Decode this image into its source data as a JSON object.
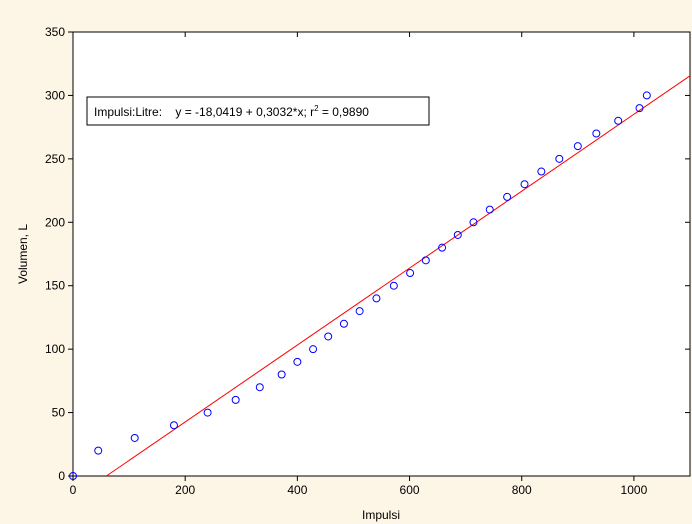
{
  "chart_data": {
    "type": "scatter",
    "title": "",
    "xlabel": "Impulsi",
    "ylabel": "Volumen, L",
    "xlim": [
      0,
      1100
    ],
    "ylim": [
      0,
      350
    ],
    "x_ticks": [
      0,
      200,
      400,
      600,
      800,
      1000
    ],
    "y_ticks": [
      0,
      50,
      100,
      150,
      200,
      250,
      300,
      350
    ],
    "grid": false,
    "colors": {
      "points": "#0000ff",
      "fit_line": "#ff0000",
      "background": "#fdf5e6",
      "plot_area": "#ffffff"
    },
    "points": [
      {
        "x": 0,
        "y": 0
      },
      {
        "x": 45,
        "y": 20
      },
      {
        "x": 110,
        "y": 30
      },
      {
        "x": 180,
        "y": 40
      },
      {
        "x": 240,
        "y": 50
      },
      {
        "x": 290,
        "y": 60
      },
      {
        "x": 333,
        "y": 70
      },
      {
        "x": 372,
        "y": 80
      },
      {
        "x": 400,
        "y": 90
      },
      {
        "x": 428,
        "y": 100
      },
      {
        "x": 455,
        "y": 110
      },
      {
        "x": 483,
        "y": 120
      },
      {
        "x": 511,
        "y": 130
      },
      {
        "x": 541,
        "y": 140
      },
      {
        "x": 572,
        "y": 150
      },
      {
        "x": 601,
        "y": 160
      },
      {
        "x": 629,
        "y": 170
      },
      {
        "x": 658,
        "y": 180
      },
      {
        "x": 686,
        "y": 190
      },
      {
        "x": 714,
        "y": 200
      },
      {
        "x": 743,
        "y": 210
      },
      {
        "x": 774,
        "y": 220
      },
      {
        "x": 805,
        "y": 230
      },
      {
        "x": 835,
        "y": 240
      },
      {
        "x": 867,
        "y": 250
      },
      {
        "x": 900,
        "y": 260
      },
      {
        "x": 933,
        "y": 270
      },
      {
        "x": 972,
        "y": 280
      },
      {
        "x": 1010,
        "y": 290
      },
      {
        "x": 1023,
        "y": 300
      }
    ],
    "fit": {
      "intercept": -18.0419,
      "slope": 0.3032
    },
    "legend": {
      "position": "top-left",
      "prefix": "Impulsi:Litre:    y = -18,0419 + 0,3032*x; r",
      "superscript": "2",
      "suffix": " = 0,9890"
    }
  }
}
